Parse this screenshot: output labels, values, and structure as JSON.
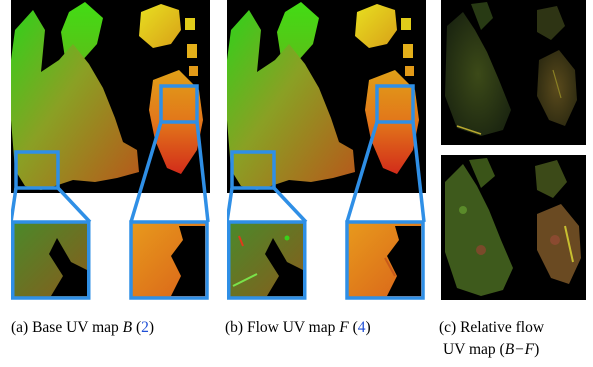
{
  "figure": {
    "panels": [
      {
        "id": "a",
        "caption": {
          "prefix": "(a) Base UV map ",
          "var": "B",
          "open": " (",
          "ref": "2",
          "close": ")"
        }
      },
      {
        "id": "b",
        "caption": {
          "prefix": "(b) Flow UV map ",
          "var": "F",
          "open": " (",
          "ref": "4",
          "close": ")"
        }
      },
      {
        "id": "c",
        "caption_line1": "(c) Relative flow",
        "caption_line2_prefix": "UV map (",
        "caption_line2_expr": "B−F",
        "caption_line2_suffix": ")"
      }
    ],
    "colors": {
      "zoom_box": "#2f8fe6",
      "background": "#000000",
      "uv_green": "#3ad11a",
      "uv_orange": "#e07a12",
      "uv_red": "#d1301c",
      "uv_yellow": "#d9d31a"
    }
  }
}
